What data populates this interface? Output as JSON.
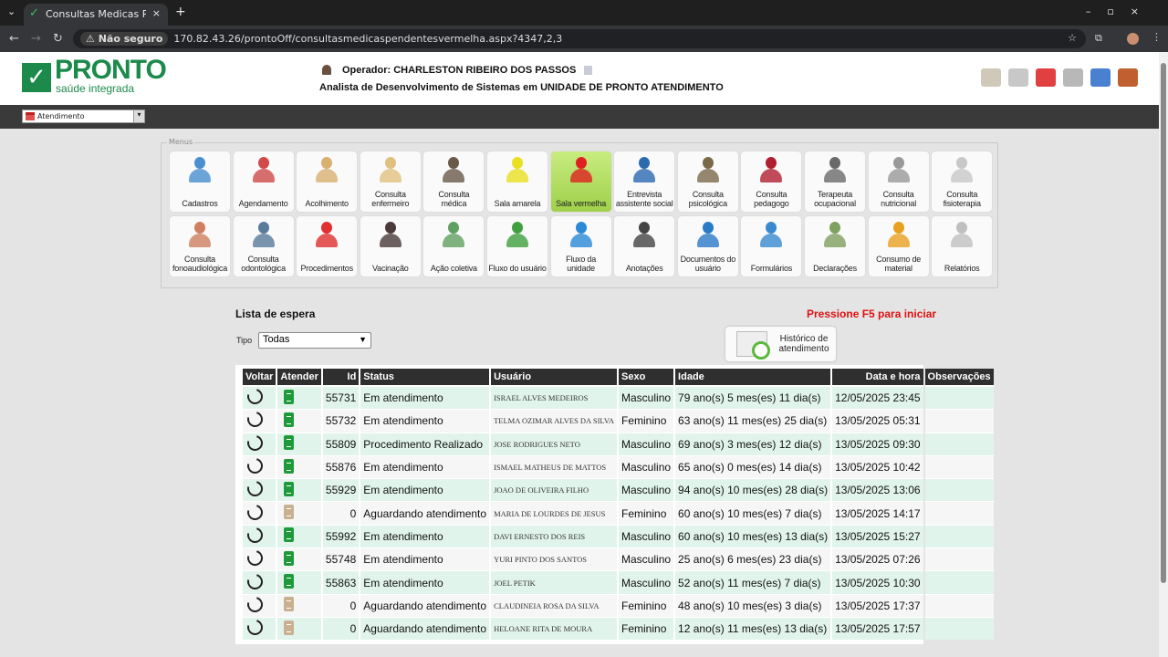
{
  "browser": {
    "tab_title": "Consultas Medicas Pendentes",
    "security": "Não seguro",
    "url": "170.82.43.26/prontoOff/consultasmedicaspendentesvermelha.aspx?4347,2,3"
  },
  "header": {
    "logo_name": "PRONTO",
    "logo_sub": "saúde integrada",
    "operator": "Operador: CHARLESTON RIBEIRO DOS PASSOS",
    "role": "Analista de Desenvolvimento de Sistemas em UNIDADE DE PRONTO ATENDIMENTO",
    "icons": [
      "presentation-icon",
      "camera-icon",
      "bar-chart-icon",
      "message-icon",
      "megaphone-icon",
      "logout-icon"
    ]
  },
  "module_select": {
    "value": "Atendimento"
  },
  "menus": {
    "legend": "Menus",
    "items": [
      {
        "label": "Cadastros",
        "color": "#4a8fd0"
      },
      {
        "label": "Agendamento",
        "color": "#d04a4a"
      },
      {
        "label": "Acolhimento",
        "color": "#d8b070"
      },
      {
        "label": "Consulta enfermeiro",
        "color": "#e0c080"
      },
      {
        "label": "Consulta médica",
        "color": "#6a5a4a"
      },
      {
        "label": "Sala amarela",
        "color": "#e8e020"
      },
      {
        "label": "Sala vermelha",
        "color": "#e02020",
        "active": true
      },
      {
        "label": "Entrevista assistente social",
        "color": "#2a6ab0"
      },
      {
        "label": "Consulta psicológica",
        "color": "#7a6a4a"
      },
      {
        "label": "Consulta pedagogo",
        "color": "#b02030"
      },
      {
        "label": "Terapeuta ocupacional",
        "color": "#6a6a6a"
      },
      {
        "label": "Consulta nutricional",
        "color": "#999999"
      },
      {
        "label": "Consulta fisioterapia",
        "color": "#c8c8c8"
      },
      {
        "label": "Consulta fonoaudiológica",
        "color": "#d08060"
      },
      {
        "label": "Consulta odontológica",
        "color": "#5a7a9a"
      },
      {
        "label": "Procedimentos",
        "color": "#e03030"
      },
      {
        "label": "Vacinação",
        "color": "#4a3a3a"
      },
      {
        "label": "Ação coletiva",
        "color": "#60a060"
      },
      {
        "label": "Fluxo do usuário",
        "color": "#40a040"
      },
      {
        "label": "Fluxo da unidade",
        "color": "#2a8ad8"
      },
      {
        "label": "Anotações",
        "color": "#444444"
      },
      {
        "label": "Documentos do usuário",
        "color": "#2a7ac8"
      },
      {
        "label": "Formulários",
        "color": "#3a8ad0"
      },
      {
        "label": "Declarações",
        "color": "#80a060"
      },
      {
        "label": "Consumo de material",
        "color": "#e8a020"
      },
      {
        "label": "Relatórios",
        "color": "#c0c0c0"
      }
    ]
  },
  "lista": {
    "title": "Lista de espera",
    "f5_notice": "Pressione F5 para iniciar",
    "tipo_label": "Tipo",
    "tipo_value": "Todas",
    "historico_label": "Histórico de atendimento"
  },
  "table": {
    "headers": [
      "Voltar",
      "Atender",
      "Id",
      "Status",
      "Usuário",
      "Sexo",
      "Idade",
      "Data e hora",
      "Observações"
    ],
    "rows": [
      {
        "id": "55731",
        "status": "Em atendimento",
        "usuario": "ISRAEL ALVES MEDEIROS",
        "sexo": "Masculino",
        "idade": "79 ano(s) 5 mes(es) 11 dia(s)",
        "data": "12/05/2025 23:45",
        "obs": "",
        "atender_state": "green"
      },
      {
        "id": "55732",
        "status": "Em atendimento",
        "usuario": "TELMA OZIMAR ALVES DA SILVA",
        "sexo": "Feminino",
        "idade": "63 ano(s) 11 mes(es) 25 dia(s)",
        "data": "13/05/2025 05:31",
        "obs": "",
        "atender_state": "green"
      },
      {
        "id": "55809",
        "status": "Procedimento Realizado",
        "usuario": "JOSE RODRIGUES NETO",
        "sexo": "Masculino",
        "idade": "69 ano(s) 3 mes(es) 12 dia(s)",
        "data": "13/05/2025 09:30",
        "obs": "",
        "atender_state": "green"
      },
      {
        "id": "55876",
        "status": "Em atendimento",
        "usuario": "ISMAEL MATHEUS DE MATTOS",
        "sexo": "Masculino",
        "idade": "65 ano(s) 0 mes(es) 14 dia(s)",
        "data": "13/05/2025 10:42",
        "obs": "",
        "atender_state": "green"
      },
      {
        "id": "55929",
        "status": "Em atendimento",
        "usuario": "JOAO DE OLIVEIRA FILHO",
        "sexo": "Masculino",
        "idade": "94 ano(s) 10 mes(es) 28 dia(s)",
        "data": "13/05/2025 13:06",
        "obs": "",
        "atender_state": "green"
      },
      {
        "id": "0",
        "status": "Aguardando atendimento",
        "usuario": "MARIA DE LOURDES DE JESUS",
        "sexo": "Feminino",
        "idade": "60 ano(s) 10 mes(es) 7 dia(s)",
        "data": "13/05/2025 14:17",
        "obs": "",
        "atender_state": "tan"
      },
      {
        "id": "55992",
        "status": "Em atendimento",
        "usuario": "DAVI ERNESTO DOS REIS",
        "sexo": "Masculino",
        "idade": "60 ano(s) 10 mes(es) 13 dia(s)",
        "data": "13/05/2025 15:27",
        "obs": "",
        "atender_state": "green"
      },
      {
        "id": "55748",
        "status": "Em atendimento",
        "usuario": "YURI PINTO DOS SANTOS",
        "sexo": "Masculino",
        "idade": "25 ano(s) 6 mes(es) 23 dia(s)",
        "data": "13/05/2025 07:26",
        "obs": "",
        "atender_state": "green"
      },
      {
        "id": "55863",
        "status": "Em atendimento",
        "usuario": "JOEL PETIK",
        "sexo": "Masculino",
        "idade": "52 ano(s) 11 mes(es) 7 dia(s)",
        "data": "13/05/2025 10:30",
        "obs": "",
        "atender_state": "green"
      },
      {
        "id": "0",
        "status": "Aguardando atendimento",
        "usuario": "CLAUDINEIA ROSA DA SILVA",
        "sexo": "Feminino",
        "idade": "48 ano(s) 10 mes(es) 3 dia(s)",
        "data": "13/05/2025 17:37",
        "obs": "",
        "atender_state": "tan"
      },
      {
        "id": "0",
        "status": "Aguardando atendimento",
        "usuario": "HELOANE RITA DE MOURA",
        "sexo": "Feminino",
        "idade": "12 ano(s) 11 mes(es) 13 dia(s)",
        "data": "13/05/2025 17:57",
        "obs": "",
        "atender_state": "tan"
      }
    ]
  },
  "colors": {
    "green": "#1e9a3a",
    "tan": "#c8b090",
    "brand": "#1b8a4a",
    "alert": "#e01010"
  }
}
